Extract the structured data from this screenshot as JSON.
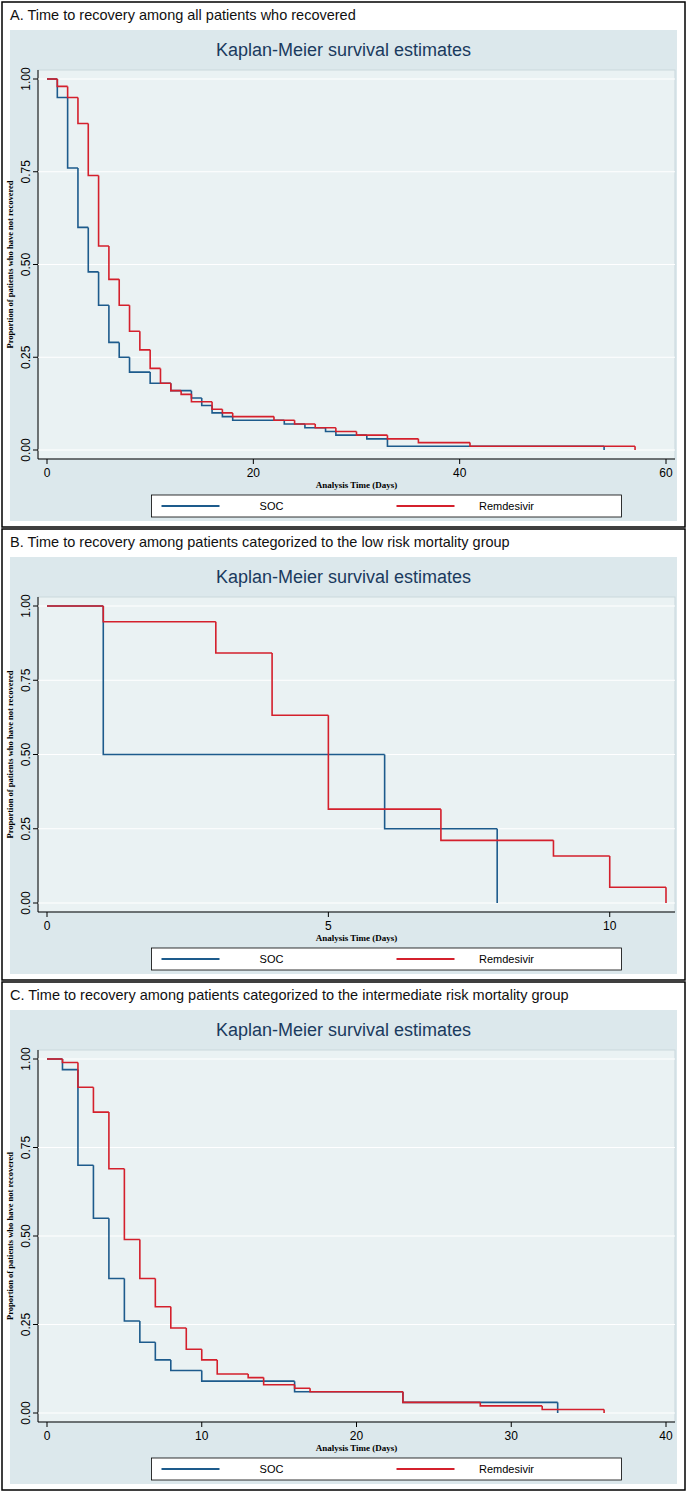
{
  "chart_data": [
    {
      "type": "line",
      "subtitle": "A. Time to recovery among all patients who recovered",
      "title": "Kaplan-Meier survival estimates",
      "x_label": "Analysis Time (Days)",
      "y_label": "Proportion of patients who have not recovered",
      "xlim": [
        0,
        60
      ],
      "xticks": [
        0,
        20,
        40,
        60
      ],
      "ylim": [
        0,
        1
      ],
      "yticks": [
        {
          "value": 0,
          "label": "0.00"
        },
        {
          "value": 0.25,
          "label": "0.25"
        },
        {
          "value": 0.5,
          "label": "0.50"
        },
        {
          "value": 0.75,
          "label": "0.75"
        },
        {
          "value": 1,
          "label": "1.00"
        }
      ],
      "grid": true,
      "legend": "bottom",
      "series": [
        {
          "name": "SOC",
          "color": "#1d5b8c",
          "line_style": "step",
          "x": [
            0,
            1,
            2,
            3,
            4,
            5,
            6,
            7,
            8,
            10,
            12,
            14,
            15,
            16,
            17,
            18,
            23,
            25,
            27,
            28,
            31,
            33,
            54
          ],
          "values": [
            1,
            0.95,
            0.76,
            0.6,
            0.48,
            0.39,
            0.29,
            0.25,
            0.21,
            0.18,
            0.16,
            0.14,
            0.12,
            0.1,
            0.09,
            0.08,
            0.07,
            0.06,
            0.05,
            0.04,
            0.03,
            0.01,
            0
          ]
        },
        {
          "name": "Remdesivir",
          "color": "#d4202c",
          "line_style": "step",
          "x": [
            0,
            1,
            2,
            3,
            4,
            5,
            6,
            7,
            8,
            9,
            10,
            11,
            12,
            13,
            14,
            16,
            17,
            18,
            22,
            24,
            26,
            28,
            30,
            33,
            36,
            41,
            57
          ],
          "values": [
            1,
            0.98,
            0.95,
            0.88,
            0.74,
            0.55,
            0.46,
            0.39,
            0.32,
            0.27,
            0.22,
            0.18,
            0.16,
            0.15,
            0.13,
            0.11,
            0.1,
            0.09,
            0.08,
            0.07,
            0.06,
            0.05,
            0.04,
            0.03,
            0.02,
            0.01,
            0
          ]
        }
      ]
    },
    {
      "type": "line",
      "subtitle": "B. Time to recovery among patients categorized to the low risk mortality group",
      "title": "Kaplan-Meier survival estimates",
      "x_label": "Analysis Time (Days)",
      "y_label": "Proportion of patients who have not recovered",
      "xlim": [
        0,
        11
      ],
      "xticks": [
        0,
        5,
        10
      ],
      "ylim": [
        0,
        1
      ],
      "yticks": [
        {
          "value": 0,
          "label": "0.00"
        },
        {
          "value": 0.25,
          "label": "0.25"
        },
        {
          "value": 0.5,
          "label": "0.50"
        },
        {
          "value": 0.75,
          "label": "0.75"
        },
        {
          "value": 1,
          "label": "1.00"
        }
      ],
      "grid": true,
      "legend": "bottom",
      "series": [
        {
          "name": "SOC",
          "color": "#1d5b8c",
          "line_style": "step",
          "x": [
            0,
            1,
            6,
            8
          ],
          "values": [
            1,
            0.5,
            0.25,
            0
          ]
        },
        {
          "name": "Remdesivir",
          "color": "#d4202c",
          "line_style": "step",
          "x": [
            0,
            1,
            3,
            4,
            5,
            7,
            9,
            10,
            11
          ],
          "values": [
            1,
            0.947,
            0.842,
            0.632,
            0.316,
            0.211,
            0.158,
            0.053,
            0
          ]
        }
      ]
    },
    {
      "type": "line",
      "subtitle": "C. Time to recovery among patients categorized to the intermediate risk mortality group",
      "title": "Kaplan-Meier survival estimates",
      "x_label": "Analysis Time (Days)",
      "y_label": "Proportion of patients who have not recovered",
      "xlim": [
        0,
        40
      ],
      "xticks": [
        0,
        10,
        20,
        30,
        40
      ],
      "ylim": [
        0,
        1
      ],
      "yticks": [
        {
          "value": 0,
          "label": "0.00"
        },
        {
          "value": 0.25,
          "label": "0.25"
        },
        {
          "value": 0.5,
          "label": "0.50"
        },
        {
          "value": 0.75,
          "label": "0.75"
        },
        {
          "value": 1,
          "label": "1.00"
        }
      ],
      "grid": true,
      "legend": "bottom",
      "series": [
        {
          "name": "SOC",
          "color": "#1d5b8c",
          "line_style": "step",
          "x": [
            0,
            1,
            2,
            3,
            4,
            5,
            6,
            7,
            8,
            10,
            16,
            23,
            33
          ],
          "values": [
            1,
            0.97,
            0.7,
            0.55,
            0.38,
            0.26,
            0.2,
            0.15,
            0.12,
            0.09,
            0.06,
            0.03,
            0
          ]
        },
        {
          "name": "Remdesivir",
          "color": "#d4202c",
          "line_style": "step",
          "x": [
            0,
            1,
            2,
            3,
            4,
            5,
            6,
            7,
            8,
            9,
            10,
            11,
            13,
            14,
            16,
            17,
            23,
            28,
            32,
            36
          ],
          "values": [
            1,
            0.99,
            0.92,
            0.85,
            0.69,
            0.49,
            0.38,
            0.3,
            0.24,
            0.18,
            0.15,
            0.11,
            0.1,
            0.08,
            0.07,
            0.06,
            0.03,
            0.02,
            0.01,
            0
          ]
        }
      ]
    }
  ]
}
